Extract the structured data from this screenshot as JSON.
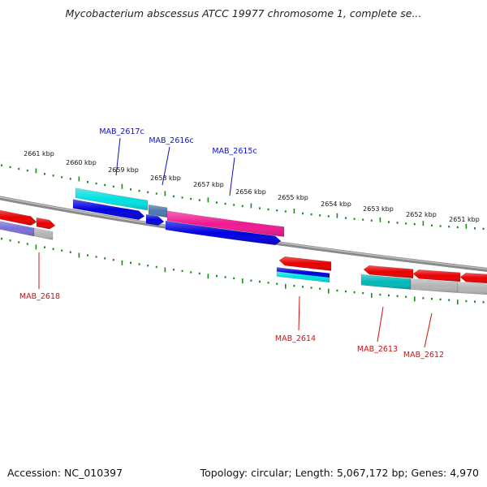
{
  "title": "Mycobacterium abscessus ATCC 19977 chromosome 1, complete se...",
  "footer": {
    "accession": "Accession: NC_010397",
    "summary": "Topology: circular; Length: 5,067,172 bp; Genes: 4,970"
  },
  "colors": {
    "backbone": "#8a8a8a",
    "tick": "#1a8a1a",
    "forward_label": "#1010c0",
    "reverse_label": "#d01010",
    "cds_red": "#e80000",
    "gene_blue": "#0000e0",
    "cyan": "#00e0e0",
    "teal": "#00b8b8",
    "steel": "#4a78b0",
    "pink": "#f01890",
    "gray": "#b4b4b4",
    "lavender": "#7a70d8"
  },
  "ruler_labels": [
    "2661 kbp",
    "2660 kbp",
    "2659 kbp",
    "2658 kbp",
    "2657 kbp",
    "2656 kbp",
    "2655 kbp",
    "2654 kbp",
    "2653 kbp",
    "2652 kbp",
    "2651 kbp"
  ],
  "genes": [
    {
      "name": "MAB_2617c",
      "strand": "forward"
    },
    {
      "name": "MAB_2616c",
      "strand": "forward"
    },
    {
      "name": "MAB_2615c",
      "strand": "forward"
    },
    {
      "name": "MAB_2618",
      "strand": "reverse"
    },
    {
      "name": "MAB_2614",
      "strand": "reverse"
    },
    {
      "name": "MAB_2613",
      "strand": "reverse"
    },
    {
      "name": "MAB_2612",
      "strand": "reverse"
    }
  ]
}
